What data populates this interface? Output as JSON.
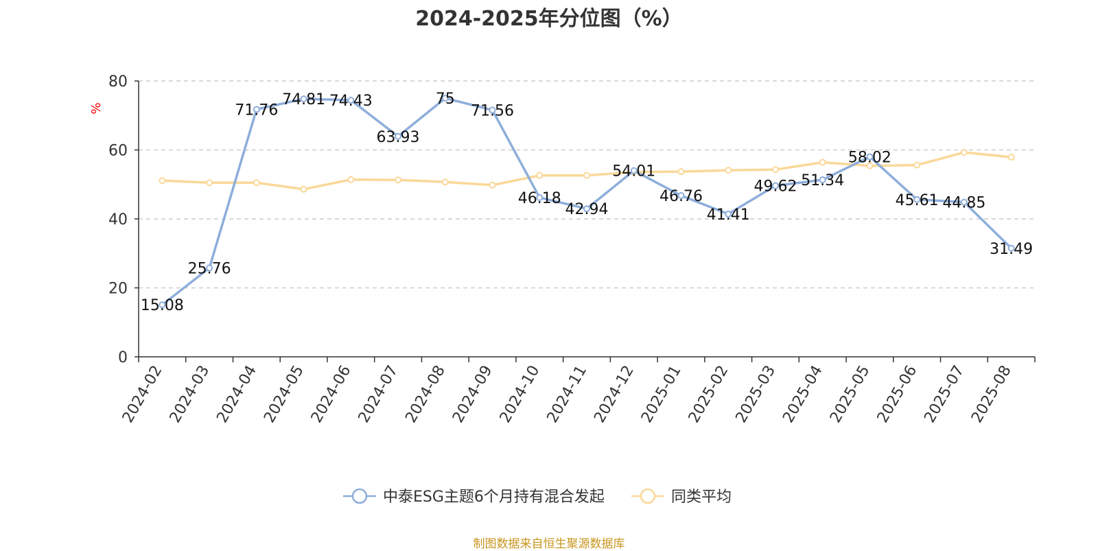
{
  "title": "2024-2025年分位图（%）",
  "source": "制图数据来自恒生聚源数据库",
  "colors": {
    "series1": "#8eaedb",
    "series2": "#fad899",
    "grid": "#cccccc",
    "axis": "#333333",
    "ylabel": "#ff0000",
    "source": "#c8961e"
  },
  "chart_data": {
    "type": "line",
    "ylabel": "%",
    "ylim": [
      0,
      80
    ],
    "yticks": [
      0,
      20,
      40,
      60,
      80
    ],
    "grid": true,
    "legend_position": "bottom-center",
    "categories": [
      "2024-02",
      "2024-03",
      "2024-04",
      "2024-05",
      "2024-06",
      "2024-07",
      "2024-08",
      "2024-09",
      "2024-10",
      "2024-11",
      "2024-12",
      "2025-01",
      "2025-02",
      "2025-03",
      "2025-04",
      "2025-05",
      "2025-06",
      "2025-07",
      "2025-08"
    ],
    "series": [
      {
        "name": "中泰ESG主题6个月持有混合发起",
        "values": [
          15.08,
          25.76,
          71.76,
          74.81,
          74.43,
          63.93,
          75,
          71.56,
          46.18,
          42.94,
          54.01,
          46.76,
          41.41,
          49.62,
          51.34,
          58.02,
          45.61,
          44.85,
          31.49
        ],
        "labels": [
          "15.08",
          "25.76",
          "71.76",
          "74.81",
          "74.43",
          "63.93",
          "75",
          "71.56",
          "46.18",
          "42.94",
          "54.01",
          "46.76",
          "41.41",
          "49.62",
          "51.34",
          "58.02",
          "45.61",
          "44.85",
          "31.49"
        ]
      },
      {
        "name": "同类平均",
        "values": [
          51.1,
          50.5,
          50.5,
          48.6,
          51.4,
          51.3,
          50.7,
          49.8,
          52.6,
          52.6,
          53.6,
          53.7,
          54.1,
          54.3,
          56.4,
          55.4,
          55.6,
          59.3,
          57.9
        ]
      }
    ]
  }
}
